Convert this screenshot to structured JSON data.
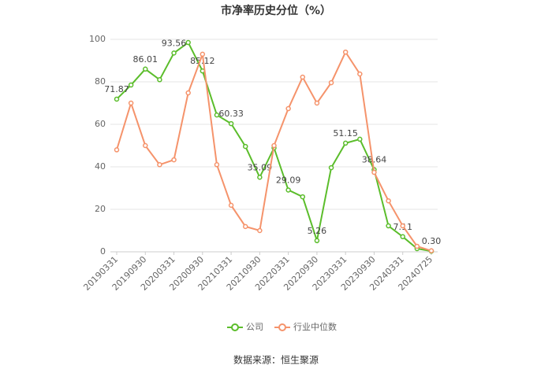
{
  "chart_data": {
    "type": "line",
    "title": "市净率历史分位（%）",
    "source": "数据来源：恒生聚源",
    "categories": [
      "20190331",
      null,
      "20190930",
      null,
      "20200331",
      null,
      "20200930",
      null,
      "20210331",
      null,
      "20210930",
      null,
      "20220331",
      null,
      "20220930",
      null,
      "20230331",
      null,
      "20230930",
      null,
      "20240331",
      null,
      "20240725"
    ],
    "series": [
      {
        "name": "公司",
        "color": "#5bbd2b",
        "values": [
          71.87,
          78.5,
          86.01,
          81,
          93.56,
          98.5,
          85.12,
          64.4,
          60.33,
          49.6,
          35.09,
          48.9,
          29.09,
          25.9,
          5.26,
          39.6,
          51.15,
          53,
          38.64,
          12.2,
          7.11,
          1.5,
          0.3
        ],
        "value_labels": [
          "71.87",
          null,
          "86.01",
          null,
          "93.56",
          null,
          "85.12",
          null,
          "60.33",
          null,
          "35.09",
          null,
          "29.09",
          null,
          "5.26",
          null,
          "51.15",
          null,
          "38.64",
          null,
          "7.11",
          null,
          "0.30"
        ]
      },
      {
        "name": "行业中位数",
        "color": "#f5936b",
        "values": [
          48,
          70,
          50,
          41,
          43.3,
          74.8,
          93,
          41,
          21.9,
          11.9,
          10,
          50,
          67.4,
          82.2,
          70,
          79.6,
          94,
          83.7,
          37.4,
          24,
          12.2,
          2.6,
          0.5
        ]
      }
    ],
    "ylim": [
      0,
      100
    ],
    "yticks": [
      0,
      20,
      40,
      60,
      80,
      100
    ],
    "grid": true,
    "legend": "bottom"
  }
}
